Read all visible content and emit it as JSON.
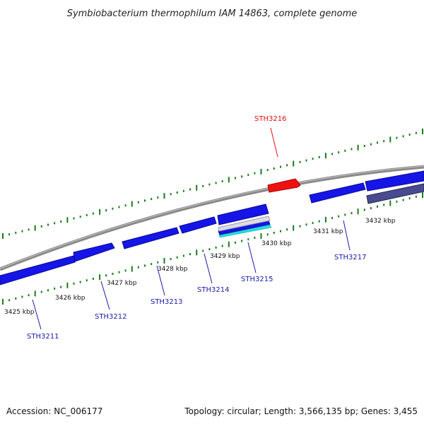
{
  "title": "Symbiobacterium thermophilum IAM 14863, complete genome",
  "footer": {
    "accession": "Accession: NC_006177",
    "summary": "Topology: circular; Length: 3,566,135 bp; Genes: 3,455"
  },
  "colors": {
    "background": "#ffffff",
    "backbone": "#888888",
    "tick": "#1a7a1a",
    "gene_forward": "#1515e8",
    "gene_selected": "#ee1111",
    "gene_dark": "#4a4a90",
    "label_blue": "#1a1aaa",
    "label_red": "#dd1111",
    "highlight_cyan": "#22dddd"
  },
  "kbp_labels": [
    "3425 kbp",
    "3426 kbp",
    "3427 kbp",
    "3428 kbp",
    "3429 kbp",
    "3430 kbp",
    "3431 kbp",
    "3432 kbp"
  ],
  "genes": [
    {
      "id": "STH3211",
      "strand": "reverse",
      "color": "blue"
    },
    {
      "id": "STH3212",
      "strand": "reverse",
      "color": "blue"
    },
    {
      "id": "STH3213",
      "strand": "reverse",
      "color": "blue"
    },
    {
      "id": "STH3214",
      "strand": "reverse",
      "color": "blue"
    },
    {
      "id": "STH3215",
      "strand": "reverse",
      "color": "blue"
    },
    {
      "id": "STH3216",
      "strand": "forward",
      "color": "red"
    },
    {
      "id": "STH3217",
      "strand": "reverse",
      "color": "blue"
    }
  ]
}
